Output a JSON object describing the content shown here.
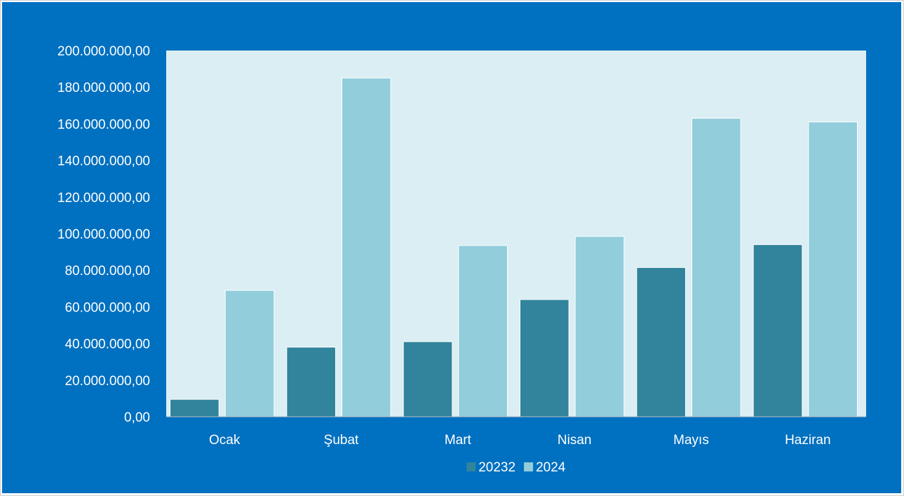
{
  "chart_data": {
    "type": "bar",
    "title": "",
    "xlabel": "",
    "ylabel": "",
    "categories": [
      "Ocak",
      "Şubat",
      "Mart",
      "Nisan",
      "Mayıs",
      "Haziran"
    ],
    "series": [
      {
        "name": "20232",
        "color": "#31849B",
        "values": [
          9500000,
          38000000,
          41000000,
          64000000,
          81500000,
          94000000
        ]
      },
      {
        "name": "2024",
        "color": "#92CDDC",
        "values": [
          69000000,
          185000000,
          93500000,
          98500000,
          163000000,
          161000000
        ]
      }
    ],
    "ylim": [
      0,
      200000000
    ],
    "yticks": [
      "0,00",
      "20.000.000,00",
      "40.000.000,00",
      "60.000.000,00",
      "80.000.000,00",
      "100.000.000,00",
      "120.000.000,00",
      "140.000.000,00",
      "160.000.000,00",
      "180.000.000,00",
      "200.000.000,00"
    ],
    "grid": false,
    "legend_position": "bottom",
    "colors": {
      "background": "#0070C0",
      "plot_area": "#DAEEF3",
      "text": "#FFFFFF"
    }
  }
}
